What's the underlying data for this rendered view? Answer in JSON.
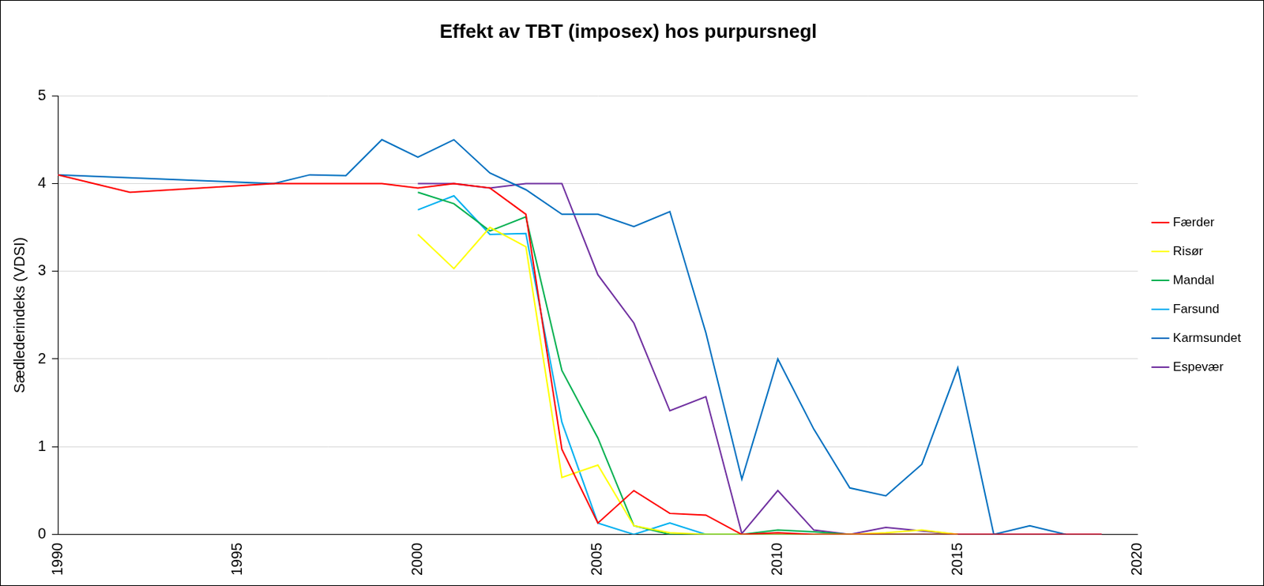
{
  "chart_data": {
    "type": "line",
    "title": "Effekt av TBT (imposex) hos purpursnegl",
    "y_label": "Sædlederindeks (VDSI)",
    "xlim": [
      1990,
      2020
    ],
    "xticks": [
      1990,
      1995,
      2000,
      2005,
      2010,
      2015,
      2020
    ],
    "ylim": [
      0,
      5
    ],
    "yticks": [
      0,
      1,
      2,
      3,
      4,
      5
    ],
    "grid": "y",
    "legend": "right",
    "series": [
      {
        "name": "Færder",
        "color": "#FF0000",
        "x": [
          1990,
          1992,
          1996,
          1997,
          1998,
          1999,
          2000,
          2001,
          2002,
          2003,
          2004,
          2005,
          2006,
          2007,
          2008,
          2009,
          2010,
          2011,
          2012,
          2013,
          2014,
          2015,
          2016,
          2017,
          2018,
          2019
        ],
        "values": [
          4.1,
          3.9,
          4.0,
          4.0,
          4.0,
          4.0,
          3.95,
          4.0,
          3.95,
          3.65,
          0.97,
          0.13,
          0.5,
          0.24,
          0.22,
          0,
          0.02,
          0,
          0,
          0,
          0,
          0,
          0,
          0,
          0,
          0
        ]
      },
      {
        "name": "Risør",
        "color": "#FFFF00",
        "x": [
          2000,
          2001,
          2002,
          2003,
          2004,
          2005,
          2006,
          2007,
          2008,
          2009,
          2010,
          2011,
          2012,
          2013,
          2014,
          2015
        ],
        "values": [
          3.42,
          3.03,
          3.5,
          3.28,
          0.65,
          0.79,
          0.1,
          0.02,
          0,
          0,
          0,
          0,
          0,
          0.02,
          0.05,
          0
        ]
      },
      {
        "name": "Mandal",
        "color": "#00B050",
        "x": [
          2000,
          2001,
          2002,
          2003,
          2004,
          2005,
          2006,
          2007,
          2008,
          2009,
          2010,
          2011,
          2012,
          2013,
          2014,
          2015
        ],
        "values": [
          3.9,
          3.77,
          3.46,
          3.62,
          1.87,
          1.1,
          0.1,
          0,
          0,
          0,
          0.05,
          0.03,
          0,
          0,
          0,
          0
        ]
      },
      {
        "name": "Farsund",
        "color": "#00B0F0",
        "x": [
          2000,
          2001,
          2002,
          2003,
          2004,
          2005,
          2006,
          2007,
          2008,
          2009,
          2010,
          2011,
          2012,
          2013,
          2014,
          2015
        ],
        "values": [
          3.7,
          3.86,
          3.42,
          3.43,
          1.28,
          0.13,
          0,
          0.13,
          0,
          0,
          0,
          0,
          0,
          0,
          0,
          0
        ]
      },
      {
        "name": "Karmsundet",
        "color": "#0070C0",
        "x": [
          1990,
          1996,
          1997,
          1998,
          1999,
          2000,
          2001,
          2002,
          2003,
          2004,
          2005,
          2006,
          2007,
          2008,
          2009,
          2010,
          2011,
          2012,
          2013,
          2014,
          2015,
          2016,
          2017,
          2018
        ],
        "values": [
          4.1,
          4.0,
          4.1,
          4.09,
          4.5,
          4.3,
          4.5,
          4.12,
          3.93,
          3.65,
          3.65,
          3.51,
          3.68,
          2.3,
          0.63,
          2.0,
          1.2,
          0.53,
          0.44,
          0.8,
          1.9,
          0,
          0.1,
          0
        ]
      },
      {
        "name": "Espevær",
        "color": "#7030A0",
        "x": [
          2000,
          2001,
          2002,
          2003,
          2004,
          2005,
          2006,
          2007,
          2008,
          2009,
          2010,
          2011,
          2012,
          2013,
          2014,
          2015,
          2016,
          2017,
          2018,
          2019
        ],
        "values": [
          4.0,
          4.0,
          3.95,
          4.0,
          4.0,
          2.96,
          2.41,
          1.41,
          1.57,
          0.01,
          0.5,
          0.05,
          0,
          0.08,
          0.04,
          0,
          0,
          0,
          0,
          0
        ]
      }
    ]
  }
}
